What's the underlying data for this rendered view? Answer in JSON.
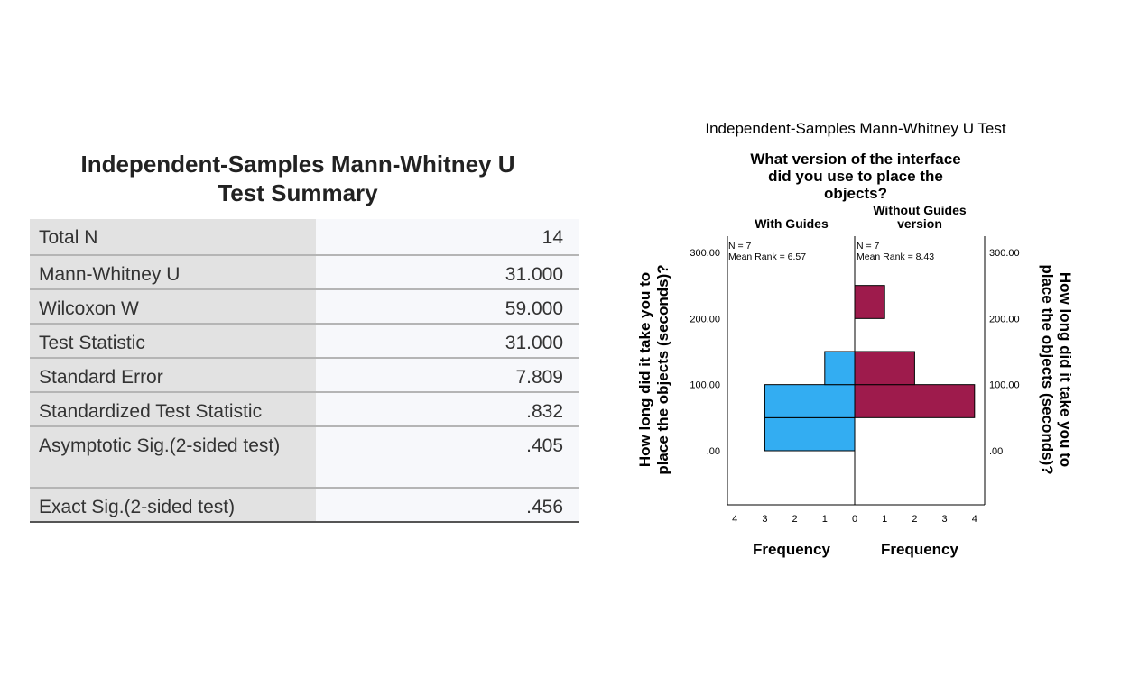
{
  "summary": {
    "title_line1": "Independent-Samples Mann-Whitney U",
    "title_line2": "Test Summary",
    "rows": [
      {
        "label": "Total N",
        "value": "14"
      },
      {
        "label": "Mann-Whitney U",
        "value": "31.000"
      },
      {
        "label": "Wilcoxon W",
        "value": "59.000"
      },
      {
        "label": "Test Statistic",
        "value": "31.000"
      },
      {
        "label": "Standard Error",
        "value": "7.809"
      },
      {
        "label": "Standardized Test Statistic",
        "value": ".832"
      },
      {
        "label": "Asymptotic Sig.(2-sided test)",
        "value": ".405"
      },
      {
        "label": "Exact Sig.(2-sided test)",
        "value": ".456"
      }
    ]
  },
  "chart_data": {
    "type": "bar",
    "subtype": "back-to-back histogram",
    "title": "Independent-Samples Mann-Whitney U Test",
    "subtitle_lines": [
      "What version of the interface",
      "did you use to place the",
      "objects?"
    ],
    "group_left": {
      "label": "With Guides",
      "n_text": "N = 7",
      "rank_text": "Mean Rank = 6.57"
    },
    "group_right": {
      "label_lines": [
        "Without Guides",
        "version"
      ],
      "n_text": "N = 7",
      "rank_text": "Mean Rank = 8.43"
    },
    "ylabel_lines": [
      "How long did it take you to",
      "place the objects (seconds)?"
    ],
    "xlabel_left": "Frequency",
    "xlabel_right": "Frequency",
    "y_ticks": [
      "300.00",
      "200.00",
      "100.00",
      ".00"
    ],
    "y_tick_values": [
      300,
      200,
      100,
      0
    ],
    "x_ticks_left": [
      "4",
      "3",
      "2",
      "1",
      "0"
    ],
    "x_ticks_right": [
      "1",
      "2",
      "3",
      "4"
    ],
    "freq_max": 4,
    "ylim": [
      -80,
      320
    ],
    "bin_width": 50,
    "left_bins": [
      {
        "start": 0,
        "count": 3
      },
      {
        "start": 50,
        "count": 3
      },
      {
        "start": 100,
        "count": 1
      }
    ],
    "right_bins": [
      {
        "start": 50,
        "count": 4
      },
      {
        "start": 100,
        "count": 2
      },
      {
        "start": 200,
        "count": 1
      }
    ],
    "colors": {
      "left": "#33adf2",
      "right": "#9e1b4c",
      "stroke": "#000000"
    }
  }
}
